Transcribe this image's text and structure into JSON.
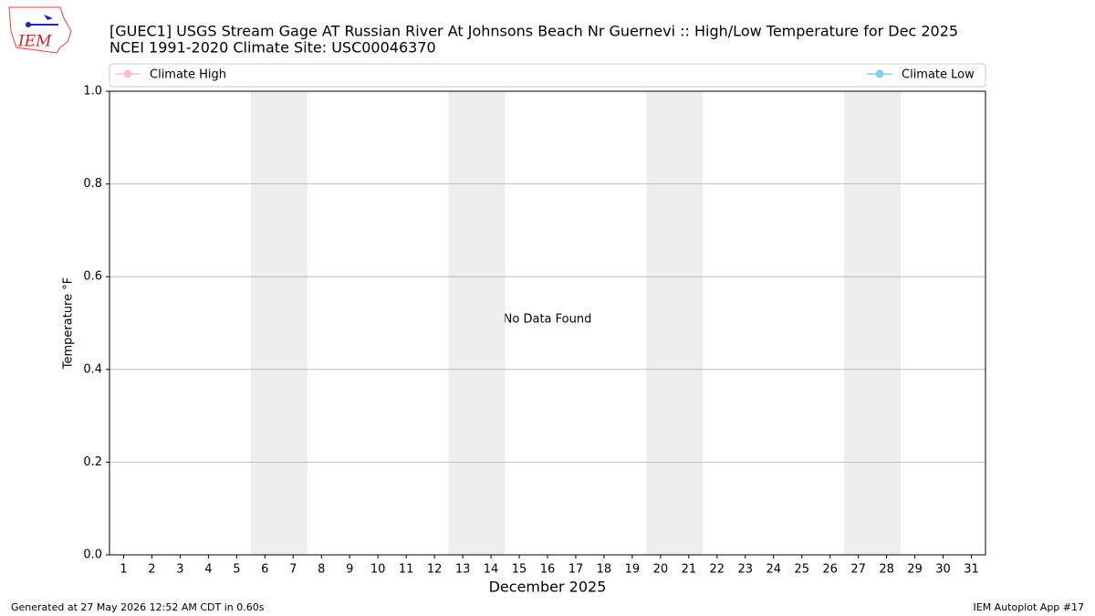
{
  "logo": "IEM",
  "chart_data": {
    "type": "line",
    "title": "[GUEC1] USGS Stream Gage  AT Russian River At Johnsons Beach Nr Guernevi :: High/Low Temperature for Dec 2025",
    "subtitle": "NCEI 1991-2020 Climate Site: USC00046370",
    "xlabel": "December 2025",
    "ylabel": "Temperature °F",
    "annotation": "No Data Found",
    "x": [
      1,
      2,
      3,
      4,
      5,
      6,
      7,
      8,
      9,
      10,
      11,
      12,
      13,
      14,
      15,
      16,
      17,
      18,
      19,
      20,
      21,
      22,
      23,
      24,
      25,
      26,
      27,
      28,
      29,
      30,
      31
    ],
    "series": [
      {
        "name": "Climate High",
        "color": "#ffc0cb",
        "values": [
          null,
          null,
          null,
          null,
          null,
          null,
          null,
          null,
          null,
          null,
          null,
          null,
          null,
          null,
          null,
          null,
          null,
          null,
          null,
          null,
          null,
          null,
          null,
          null,
          null,
          null,
          null,
          null,
          null,
          null,
          null
        ]
      },
      {
        "name": "Climate Low",
        "color": "#87ceeb",
        "values": [
          null,
          null,
          null,
          null,
          null,
          null,
          null,
          null,
          null,
          null,
          null,
          null,
          null,
          null,
          null,
          null,
          null,
          null,
          null,
          null,
          null,
          null,
          null,
          null,
          null,
          null,
          null,
          null,
          null,
          null,
          null
        ]
      }
    ],
    "shaded_x": [
      [
        6,
        7
      ],
      [
        13,
        14
      ],
      [
        20,
        21
      ],
      [
        27,
        28
      ]
    ],
    "xlim": [
      0.5,
      31.5
    ],
    "xticks": [
      1,
      2,
      3,
      4,
      5,
      6,
      7,
      8,
      9,
      10,
      11,
      12,
      13,
      14,
      15,
      16,
      17,
      18,
      19,
      20,
      21,
      22,
      23,
      24,
      25,
      26,
      27,
      28,
      29,
      30,
      31
    ],
    "ylim": [
      0,
      1
    ],
    "yticks": [
      {
        "value": 0,
        "label": "0.0"
      },
      0.2,
      0.4,
      0.6,
      0.8,
      {
        "value": 1,
        "label": "1.0"
      }
    ],
    "grid": true,
    "legend": "top"
  },
  "footer": {
    "left": "Generated at 27 May 2026 12:52 AM CDT in 0.60s",
    "right": "IEM Autoplot App #17"
  }
}
